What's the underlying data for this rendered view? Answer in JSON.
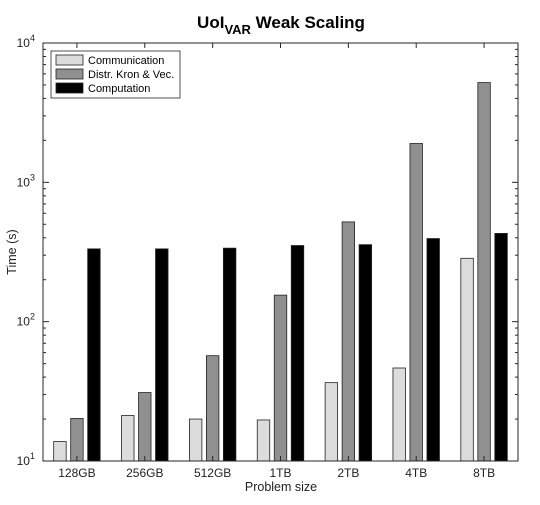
{
  "chart_data": {
    "type": "bar",
    "title_main": "UoI",
    "title_sub": "VAR",
    "title_rest": " Weak Scaling",
    "xlabel": "Problem size",
    "ylabel": "Time (s)",
    "yscale": "log",
    "ylim": [
      10,
      10000
    ],
    "ytick_base": "10",
    "ytick_exponents": [
      "1",
      "2",
      "3",
      "4"
    ],
    "legend_position": "top-left",
    "grid": false,
    "categories": [
      "128GB",
      "256GB",
      "512GB",
      "1TB",
      "2TB",
      "4TB",
      "8TB"
    ],
    "series": [
      {
        "name": "Communication",
        "color": "#dcdcdc",
        "values": [
          13.8,
          21.2,
          20.0,
          19.7,
          36.5,
          46.5,
          285
        ]
      },
      {
        "name": "Distr. Kron & Vec.",
        "color": "#909090",
        "values": [
          20.2,
          31.0,
          57.0,
          155,
          520,
          1900,
          5200
        ]
      },
      {
        "name": "Computation",
        "color": "#000000",
        "values": [
          333,
          333,
          337,
          352,
          357,
          395,
          430
        ]
      }
    ]
  }
}
